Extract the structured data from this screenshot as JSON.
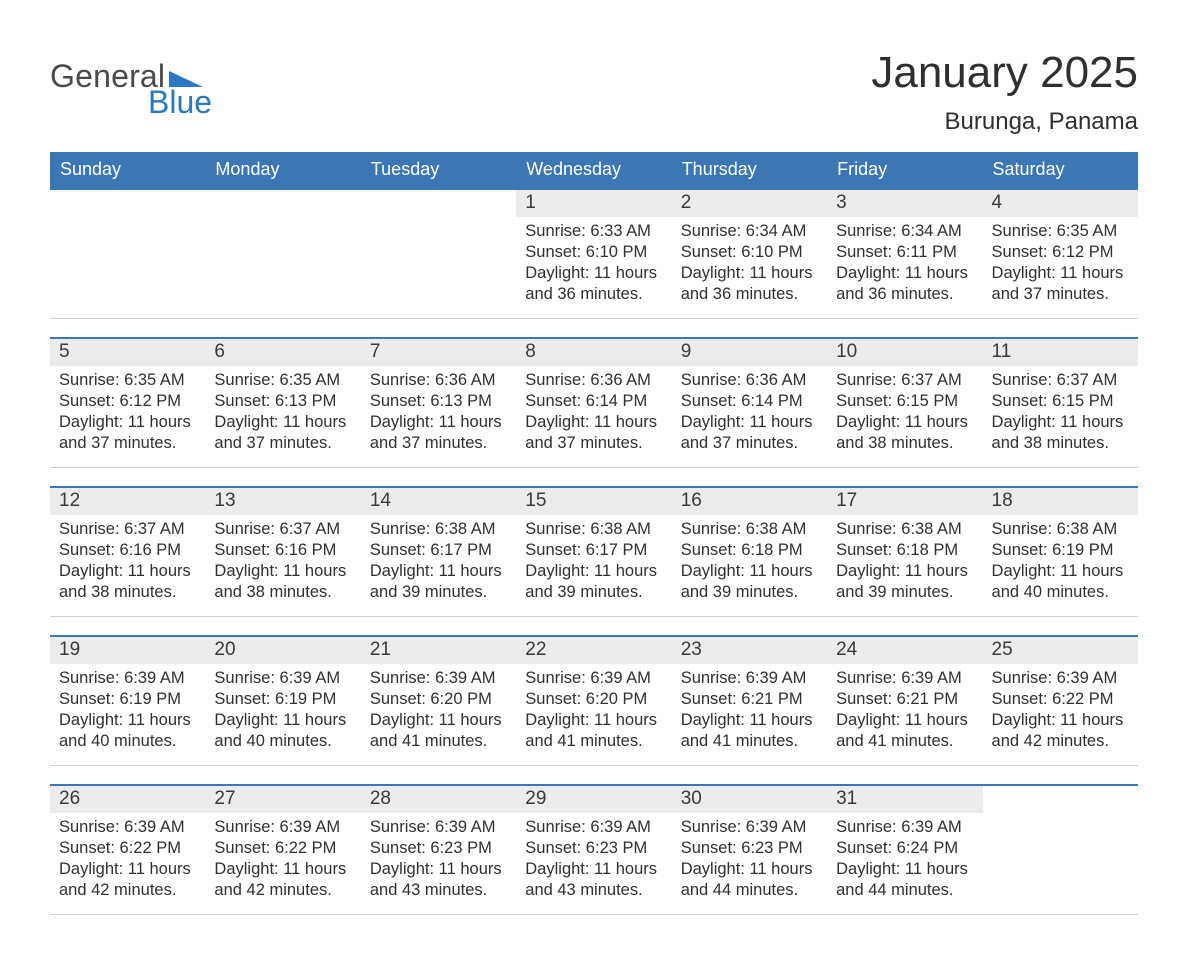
{
  "colors": {
    "header_blue": "#3b76b5",
    "week_border_blue": "#3b76b5",
    "gray_stripe": "#ececec",
    "text": "#303030",
    "logo_blue": "#2a79c0",
    "background": "#ffffff"
  },
  "logo": {
    "word1": "General",
    "word2": "Blue"
  },
  "title": "January 2025",
  "location": "Burunga, Panama",
  "day_names": [
    "Sunday",
    "Monday",
    "Tuesday",
    "Wednesday",
    "Thursday",
    "Friday",
    "Saturday"
  ],
  "weeks": [
    [
      {
        "blank": true
      },
      {
        "blank": true
      },
      {
        "blank": true
      },
      {
        "day": "1",
        "sunrise": "Sunrise: 6:33 AM",
        "sunset": "Sunset: 6:10 PM",
        "day1": "Daylight: 11 hours",
        "day2": "and 36 minutes."
      },
      {
        "day": "2",
        "sunrise": "Sunrise: 6:34 AM",
        "sunset": "Sunset: 6:10 PM",
        "day1": "Daylight: 11 hours",
        "day2": "and 36 minutes."
      },
      {
        "day": "3",
        "sunrise": "Sunrise: 6:34 AM",
        "sunset": "Sunset: 6:11 PM",
        "day1": "Daylight: 11 hours",
        "day2": "and 36 minutes."
      },
      {
        "day": "4",
        "sunrise": "Sunrise: 6:35 AM",
        "sunset": "Sunset: 6:12 PM",
        "day1": "Daylight: 11 hours",
        "day2": "and 37 minutes."
      }
    ],
    [
      {
        "day": "5",
        "sunrise": "Sunrise: 6:35 AM",
        "sunset": "Sunset: 6:12 PM",
        "day1": "Daylight: 11 hours",
        "day2": "and 37 minutes."
      },
      {
        "day": "6",
        "sunrise": "Sunrise: 6:35 AM",
        "sunset": "Sunset: 6:13 PM",
        "day1": "Daylight: 11 hours",
        "day2": "and 37 minutes."
      },
      {
        "day": "7",
        "sunrise": "Sunrise: 6:36 AM",
        "sunset": "Sunset: 6:13 PM",
        "day1": "Daylight: 11 hours",
        "day2": "and 37 minutes."
      },
      {
        "day": "8",
        "sunrise": "Sunrise: 6:36 AM",
        "sunset": "Sunset: 6:14 PM",
        "day1": "Daylight: 11 hours",
        "day2": "and 37 minutes."
      },
      {
        "day": "9",
        "sunrise": "Sunrise: 6:36 AM",
        "sunset": "Sunset: 6:14 PM",
        "day1": "Daylight: 11 hours",
        "day2": "and 37 minutes."
      },
      {
        "day": "10",
        "sunrise": "Sunrise: 6:37 AM",
        "sunset": "Sunset: 6:15 PM",
        "day1": "Daylight: 11 hours",
        "day2": "and 38 minutes."
      },
      {
        "day": "11",
        "sunrise": "Sunrise: 6:37 AM",
        "sunset": "Sunset: 6:15 PM",
        "day1": "Daylight: 11 hours",
        "day2": "and 38 minutes."
      }
    ],
    [
      {
        "day": "12",
        "sunrise": "Sunrise: 6:37 AM",
        "sunset": "Sunset: 6:16 PM",
        "day1": "Daylight: 11 hours",
        "day2": "and 38 minutes."
      },
      {
        "day": "13",
        "sunrise": "Sunrise: 6:37 AM",
        "sunset": "Sunset: 6:16 PM",
        "day1": "Daylight: 11 hours",
        "day2": "and 38 minutes."
      },
      {
        "day": "14",
        "sunrise": "Sunrise: 6:38 AM",
        "sunset": "Sunset: 6:17 PM",
        "day1": "Daylight: 11 hours",
        "day2": "and 39 minutes."
      },
      {
        "day": "15",
        "sunrise": "Sunrise: 6:38 AM",
        "sunset": "Sunset: 6:17 PM",
        "day1": "Daylight: 11 hours",
        "day2": "and 39 minutes."
      },
      {
        "day": "16",
        "sunrise": "Sunrise: 6:38 AM",
        "sunset": "Sunset: 6:18 PM",
        "day1": "Daylight: 11 hours",
        "day2": "and 39 minutes."
      },
      {
        "day": "17",
        "sunrise": "Sunrise: 6:38 AM",
        "sunset": "Sunset: 6:18 PM",
        "day1": "Daylight: 11 hours",
        "day2": "and 39 minutes."
      },
      {
        "day": "18",
        "sunrise": "Sunrise: 6:38 AM",
        "sunset": "Sunset: 6:19 PM",
        "day1": "Daylight: 11 hours",
        "day2": "and 40 minutes."
      }
    ],
    [
      {
        "day": "19",
        "sunrise": "Sunrise: 6:39 AM",
        "sunset": "Sunset: 6:19 PM",
        "day1": "Daylight: 11 hours",
        "day2": "and 40 minutes."
      },
      {
        "day": "20",
        "sunrise": "Sunrise: 6:39 AM",
        "sunset": "Sunset: 6:19 PM",
        "day1": "Daylight: 11 hours",
        "day2": "and 40 minutes."
      },
      {
        "day": "21",
        "sunrise": "Sunrise: 6:39 AM",
        "sunset": "Sunset: 6:20 PM",
        "day1": "Daylight: 11 hours",
        "day2": "and 41 minutes."
      },
      {
        "day": "22",
        "sunrise": "Sunrise: 6:39 AM",
        "sunset": "Sunset: 6:20 PM",
        "day1": "Daylight: 11 hours",
        "day2": "and 41 minutes."
      },
      {
        "day": "23",
        "sunrise": "Sunrise: 6:39 AM",
        "sunset": "Sunset: 6:21 PM",
        "day1": "Daylight: 11 hours",
        "day2": "and 41 minutes."
      },
      {
        "day": "24",
        "sunrise": "Sunrise: 6:39 AM",
        "sunset": "Sunset: 6:21 PM",
        "day1": "Daylight: 11 hours",
        "day2": "and 41 minutes."
      },
      {
        "day": "25",
        "sunrise": "Sunrise: 6:39 AM",
        "sunset": "Sunset: 6:22 PM",
        "day1": "Daylight: 11 hours",
        "day2": "and 42 minutes."
      }
    ],
    [
      {
        "day": "26",
        "sunrise": "Sunrise: 6:39 AM",
        "sunset": "Sunset: 6:22 PM",
        "day1": "Daylight: 11 hours",
        "day2": "and 42 minutes."
      },
      {
        "day": "27",
        "sunrise": "Sunrise: 6:39 AM",
        "sunset": "Sunset: 6:22 PM",
        "day1": "Daylight: 11 hours",
        "day2": "and 42 minutes."
      },
      {
        "day": "28",
        "sunrise": "Sunrise: 6:39 AM",
        "sunset": "Sunset: 6:23 PM",
        "day1": "Daylight: 11 hours",
        "day2": "and 43 minutes."
      },
      {
        "day": "29",
        "sunrise": "Sunrise: 6:39 AM",
        "sunset": "Sunset: 6:23 PM",
        "day1": "Daylight: 11 hours",
        "day2": "and 43 minutes."
      },
      {
        "day": "30",
        "sunrise": "Sunrise: 6:39 AM",
        "sunset": "Sunset: 6:23 PM",
        "day1": "Daylight: 11 hours",
        "day2": "and 44 minutes."
      },
      {
        "day": "31",
        "sunrise": "Sunrise: 6:39 AM",
        "sunset": "Sunset: 6:24 PM",
        "day1": "Daylight: 11 hours",
        "day2": "and 44 minutes."
      },
      {
        "blank": true
      }
    ]
  ]
}
